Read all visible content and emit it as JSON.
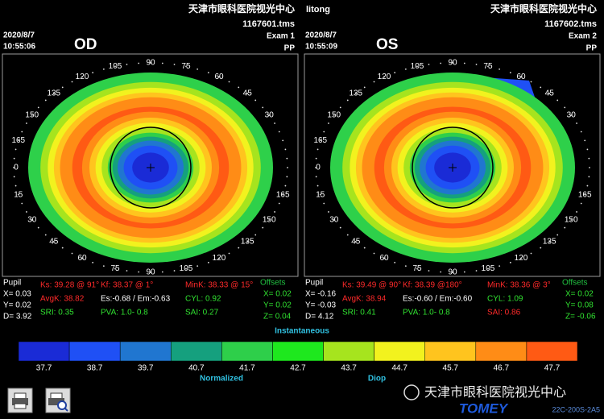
{
  "panels": [
    {
      "clinic": "天津市眼科医院视光中心",
      "file": "1167601.tms",
      "exam": "Exam 1",
      "mode": "PP",
      "date": "2020/8/7",
      "time": "10:55:06",
      "eye": "OD",
      "top_labels": [
        30,
        45,
        60,
        75,
        90,
        105,
        120,
        135,
        150,
        165
      ],
      "left_label": 0,
      "bottom_labels": [
        15,
        30,
        45,
        60,
        75,
        90,
        105,
        120,
        135,
        150,
        165
      ],
      "stats": [
        {
          "text": "Pupil",
          "color": "#ffffff"
        },
        {
          "text": "X= 0.03",
          "color": "#ffffff"
        },
        {
          "text": "Y= 0.02",
          "color": "#ffffff"
        },
        {
          "text": "D= 3.92",
          "color": "#ffffff"
        },
        {
          "text": "Ks: 39.28 @ 91°",
          "color": "#ff2a2a"
        },
        {
          "text": "Kf: 38.37 @  1°",
          "color": "#ff2a2a"
        },
        {
          "text": "MinK: 38.33 @ 15°",
          "color": "#ff2a2a"
        },
        {
          "text": "AvgK: 38.82",
          "color": "#ff2a2a"
        },
        {
          "text": "Es:-0.68 / Em:-0.63",
          "color": "#ffffff"
        },
        {
          "text": "CYL:  0.92",
          "color": "#30e030"
        },
        {
          "text": "SRI: 0.35",
          "color": "#30e030"
        },
        {
          "text": "PVA:  1.0-  0.8",
          "color": "#30e030"
        },
        {
          "text": "SAI: 0.27",
          "color": "#30e030"
        },
        {
          "text": "Offsets",
          "color": "#20c040"
        },
        {
          "text": "X= 0.02",
          "color": "#30e030"
        },
        {
          "text": "Y= 0.02",
          "color": "#30e030"
        },
        {
          "text": "Z= 0.04",
          "color": "#30e030"
        }
      ]
    },
    {
      "clinic": "天津市眼科医院视光中心",
      "file": "1167602.tms",
      "exam": "Exam 2",
      "mode": "PP",
      "date": "2020/8/7",
      "time": "10:55:09",
      "eye": "OS",
      "top_labels": [
        30,
        45,
        60,
        75,
        90,
        105,
        120,
        135,
        150,
        165
      ],
      "left_label": 0,
      "bottom_labels": [
        15,
        30,
        45,
        60,
        75,
        90,
        105,
        120,
        135,
        150,
        165
      ],
      "stats": [
        {
          "text": "Pupil",
          "color": "#ffffff"
        },
        {
          "text": "X= -0.16",
          "color": "#ffffff"
        },
        {
          "text": "Y= -0.03",
          "color": "#ffffff"
        },
        {
          "text": "D= 4.12",
          "color": "#ffffff"
        },
        {
          "text": "Ks: 39.49 @ 90°",
          "color": "#ff2a2a"
        },
        {
          "text": "Kf: 38.39 @180°",
          "color": "#ff2a2a"
        },
        {
          "text": "MinK: 38.36 @  3°",
          "color": "#ff2a2a"
        },
        {
          "text": "AvgK: 38.94",
          "color": "#ff2a2a"
        },
        {
          "text": "Es:-0.60 / Em:-0.60",
          "color": "#ffffff"
        },
        {
          "text": "CYL:  1.09",
          "color": "#30e030"
        },
        {
          "text": "SRI: 0.41",
          "color": "#30e030"
        },
        {
          "text": "PVA:  1.0-  0.8",
          "color": "#30e030"
        },
        {
          "text": "SAI: 0.86",
          "color": "#ff2a2a"
        },
        {
          "text": "Offsets",
          "color": "#20c040"
        },
        {
          "text": "X= 0.02",
          "color": "#30e030"
        },
        {
          "text": "Y= 0.08",
          "color": "#30e030"
        },
        {
          "text": "Z= -0.06",
          "color": "#30e030"
        }
      ]
    }
  ],
  "patient": "litong",
  "scale": {
    "title": "Instantaneous",
    "values": [
      37.7,
      38.7,
      39.7,
      40.7,
      41.7,
      42.7,
      43.7,
      44.7,
      45.7,
      46.7,
      47.7
    ],
    "colors": [
      "#1a2bd6",
      "#1f50f5",
      "#2076d0",
      "#15a07e",
      "#2ecf4a",
      "#1ee81e",
      "#a6e41e",
      "#f2f21e",
      "#ffc41e",
      "#ff8c16",
      "#ff5a14"
    ],
    "left_caption": "Normalized",
    "right_caption": "Diop"
  },
  "footer": {
    "watermark": "天津市眼科医院视光中心",
    "brand": "TOMEY",
    "model": "22C-200S-2A5"
  }
}
